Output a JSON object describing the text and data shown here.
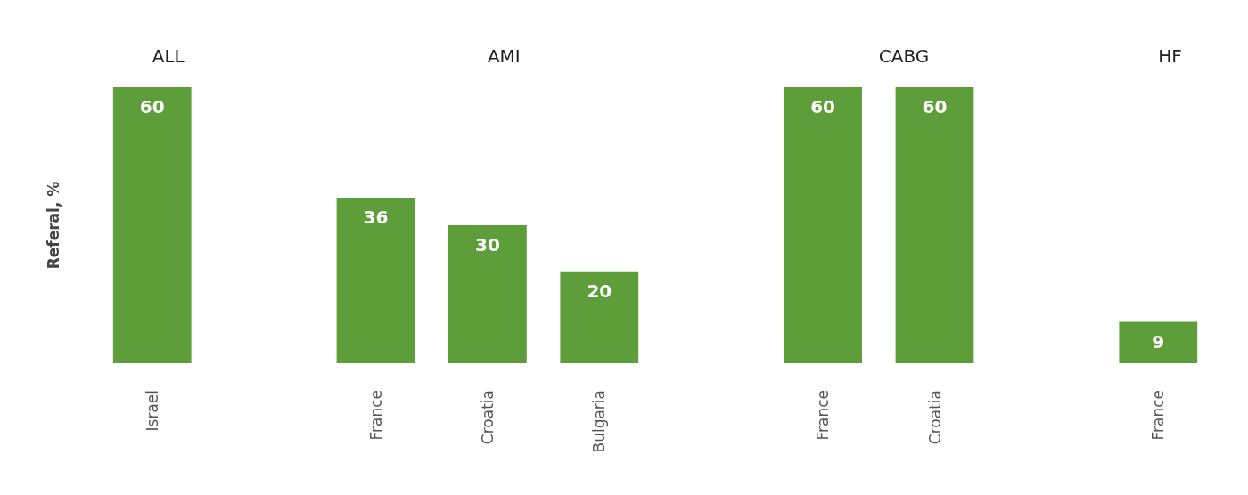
{
  "chart_data": {
    "type": "bar",
    "ylabel": "Referal, %",
    "categories": [
      "Israel",
      null,
      "France",
      "Croatia",
      "Bulgaria",
      null,
      "France",
      "Croatia",
      null,
      "France"
    ],
    "values": [
      60,
      null,
      36,
      30,
      20,
      null,
      60,
      60,
      null,
      9
    ],
    "color": "#5e9e3a",
    "data_labels": true,
    "annotations": [
      "ALL",
      "AMI",
      "CABG",
      "HF"
    ]
  }
}
